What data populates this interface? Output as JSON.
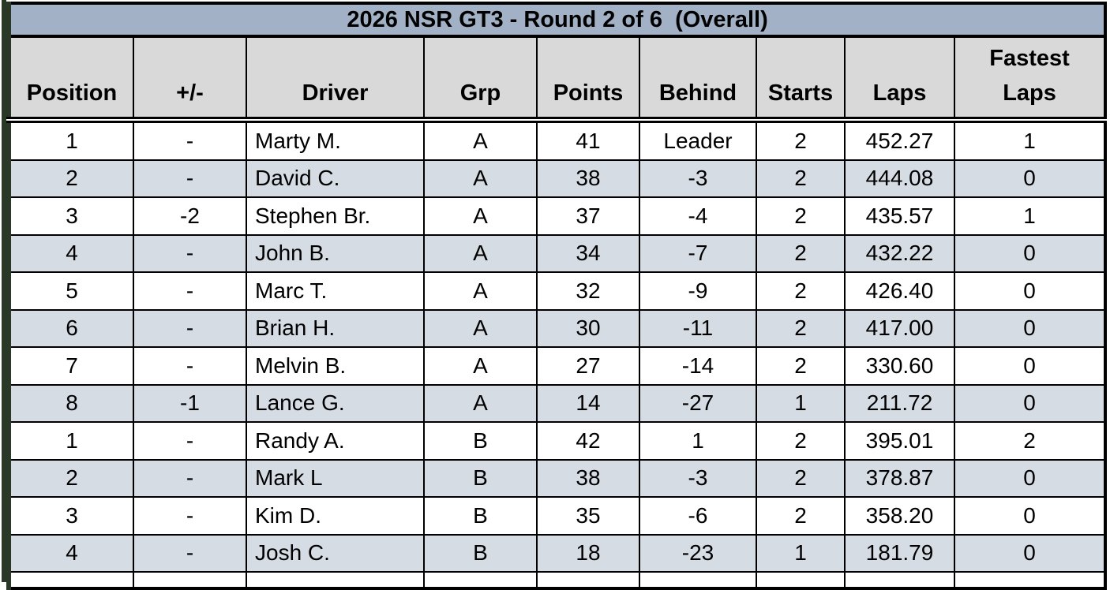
{
  "table": {
    "title": "2026 NSR GT3 - Round 2 of 6  (Overall)",
    "columns": [
      {
        "key": "position",
        "label": "Position"
      },
      {
        "key": "plus-minus",
        "label": "+/-"
      },
      {
        "key": "driver",
        "label": "Driver"
      },
      {
        "key": "grp",
        "label": "Grp"
      },
      {
        "key": "points",
        "label": "Points"
      },
      {
        "key": "behind",
        "label": "Behind"
      },
      {
        "key": "starts",
        "label": "Starts"
      },
      {
        "key": "laps",
        "label": "Laps"
      },
      {
        "key": "fastest-laps",
        "label": "Fastest\nLaps"
      }
    ],
    "rows": [
      [
        "1",
        "-",
        "Marty M.",
        "A",
        "41",
        "Leader",
        "2",
        "452.27",
        "1"
      ],
      [
        "2",
        "-",
        "David C.",
        "A",
        "38",
        "-3",
        "2",
        "444.08",
        "0"
      ],
      [
        "3",
        "-2",
        "Stephen Br.",
        "A",
        "37",
        "-4",
        "2",
        "435.57",
        "1"
      ],
      [
        "4",
        "-",
        "John B.",
        "A",
        "34",
        "-7",
        "2",
        "432.22",
        "0"
      ],
      [
        "5",
        "-",
        "Marc T.",
        "A",
        "32",
        "-9",
        "2",
        "426.40",
        "0"
      ],
      [
        "6",
        "-",
        "Brian H.",
        "A",
        "30",
        "-11",
        "2",
        "417.00",
        "0"
      ],
      [
        "7",
        "-",
        "Melvin B.",
        "A",
        "27",
        "-14",
        "2",
        "330.60",
        "0"
      ],
      [
        "8",
        "-1",
        "Lance G.",
        "A",
        "14",
        "-27",
        "1",
        "211.72",
        "0"
      ],
      [
        "1",
        "-",
        "Randy A.",
        "B",
        "42",
        "1",
        "2",
        "395.01",
        "2"
      ],
      [
        "2",
        "-",
        "Mark L",
        "B",
        "38",
        "-3",
        "2",
        "378.87",
        "0"
      ],
      [
        "3",
        "-",
        "Kim D.",
        "B",
        "35",
        "-6",
        "2",
        "358.20",
        "0"
      ],
      [
        "4",
        "-",
        "Josh C.",
        "B",
        "18",
        "-23",
        "1",
        "181.79",
        "0"
      ]
    ],
    "colors": {
      "title_bg": "#a2b1c6",
      "header_bg": "#d9d9d9",
      "row_bg": "#ffffff",
      "row_alt_bg": "#d6dce4",
      "border": "#000000",
      "window_edge": "#293827"
    }
  }
}
